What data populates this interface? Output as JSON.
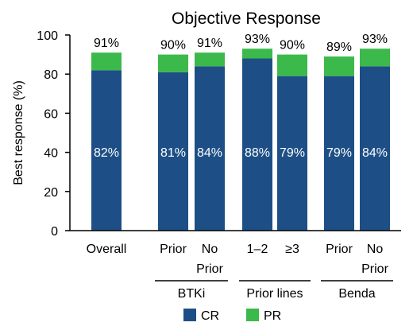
{
  "chart_data": {
    "type": "bar",
    "stacked": true,
    "title": "Objective Response",
    "ylabel": "Best response (%)",
    "xlabel": "",
    "ylim": [
      0,
      100
    ],
    "yticks": [
      0,
      20,
      40,
      60,
      80,
      100
    ],
    "grid": false,
    "legend_position": "bottom",
    "categories": [
      {
        "line1": "Overall",
        "line2": ""
      },
      {
        "line1": "Prior",
        "line2": ""
      },
      {
        "line1": "No",
        "line2": "Prior"
      },
      {
        "line1": "1–2",
        "line2": ""
      },
      {
        "line1": "≥3",
        "line2": ""
      },
      {
        "line1": "Prior",
        "line2": ""
      },
      {
        "line1": "No",
        "line2": "Prior"
      }
    ],
    "series": [
      {
        "name": "CR",
        "color": "#1d4f86",
        "values": [
          82,
          81,
          84,
          88,
          79,
          79,
          84
        ],
        "labels": [
          "82%",
          "81%",
          "84%",
          "88%",
          "79%",
          "79%",
          "84%"
        ]
      },
      {
        "name": "PR",
        "color": "#3cb94b",
        "values": [
          9,
          9,
          7,
          5,
          11,
          10,
          9
        ]
      }
    ],
    "totals": [
      "91%",
      "90%",
      "91%",
      "93%",
      "90%",
      "89%",
      "93%"
    ],
    "total_values": [
      91,
      90,
      91,
      93,
      90,
      89,
      93
    ],
    "groups": [
      {
        "label": "BTKi",
        "first": 1,
        "last": 2
      },
      {
        "label": "Prior lines",
        "first": 3,
        "last": 4
      },
      {
        "label": "Benda",
        "first": 5,
        "last": 6
      }
    ]
  }
}
